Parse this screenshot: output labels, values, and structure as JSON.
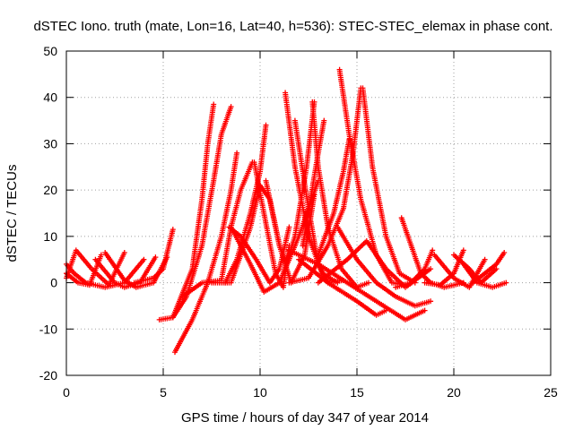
{
  "chart_data": {
    "type": "scatter",
    "title": "dSTEC Iono. truth (mate, Lon=16, Lat=40, h=536): STEC-STEC_elemax in phase cont.",
    "xlabel": "GPS time / hours of day 347 of year 2014",
    "ylabel": "dSTEC  / TECUs",
    "xlim": [
      0,
      25
    ],
    "ylim": [
      -20,
      50
    ],
    "x_ticks": [
      0,
      5,
      10,
      15,
      20,
      25
    ],
    "y_ticks": [
      -20,
      -10,
      0,
      10,
      20,
      30,
      40,
      50
    ],
    "x_tick_labels": [
      "0",
      "5",
      "10",
      "15",
      "20",
      "25"
    ],
    "y_tick_labels": [
      "-20",
      "-10",
      "0",
      "10",
      "20",
      "30",
      "40",
      "50"
    ],
    "grid": true,
    "marker": "+",
    "marker_color": "#ff0000",
    "legend": "none",
    "series": [
      {
        "x": [
          0.0,
          0.6,
          1.2,
          1.8
        ],
        "y": [
          2,
          0,
          -0.5,
          6
        ]
      },
      {
        "x": [
          0.0,
          0.5,
          1.3,
          2.2,
          3.0
        ],
        "y": [
          1,
          7,
          3,
          -0.5,
          6.5
        ]
      },
      {
        "x": [
          0.0,
          0.4,
          1.0,
          2.0,
          3.0,
          4.0
        ],
        "y": [
          4,
          2,
          0,
          -1,
          0,
          5
        ]
      },
      {
        "x": [
          1.5,
          2.5,
          3.0,
          3.8,
          4.6
        ],
        "y": [
          5,
          0,
          -1,
          0,
          5.5
        ]
      },
      {
        "x": [
          2.0,
          3.0,
          3.6,
          4.5,
          5.2
        ],
        "y": [
          6.5,
          0.5,
          -1,
          0,
          5.5
        ]
      },
      {
        "x": [
          3.5,
          4.5,
          5.0,
          5.5
        ],
        "y": [
          0,
          1,
          3,
          11.5
        ]
      },
      {
        "x": [
          4.8,
          5.5,
          6.5,
          7.0,
          7.3,
          7.6
        ],
        "y": [
          -8,
          -7.5,
          3,
          18,
          30,
          38.5
        ]
      },
      {
        "x": [
          5.5,
          6.2,
          7.0,
          7.6,
          8.0,
          8.5
        ],
        "y": [
          -7.5,
          -3,
          8,
          22,
          32,
          38
        ]
      },
      {
        "x": [
          5.6,
          6.5,
          7.3,
          8.0,
          8.5,
          8.8
        ],
        "y": [
          -15,
          -8,
          0,
          10,
          20,
          28
        ]
      },
      {
        "x": [
          6.0,
          7.0,
          8.0,
          8.5,
          9.0,
          9.6
        ],
        "y": [
          -3,
          0,
          0.5,
          12,
          20,
          26
        ]
      },
      {
        "x": [
          8.2,
          8.8,
          9.5,
          10.0,
          10.3
        ],
        "y": [
          0,
          5,
          15,
          24,
          34
        ]
      },
      {
        "x": [
          8.4,
          9.0,
          9.8,
          10.5,
          11.0,
          11.5
        ],
        "y": [
          12,
          10,
          5,
          0,
          3,
          12
        ]
      },
      {
        "x": [
          7.5,
          8.5,
          9.5,
          10.0,
          10.5,
          11.0
        ],
        "y": [
          0,
          0,
          12,
          21,
          18,
          8
        ]
      },
      {
        "x": [
          8.5,
          9.5,
          10.2,
          11.0,
          12.0,
          13.0
        ],
        "y": [
          12,
          4,
          -2,
          0,
          10,
          22
        ]
      },
      {
        "x": [
          9.7,
          10.2,
          10.8,
          11.2,
          11.5
        ],
        "y": [
          26,
          15,
          2,
          -1,
          8
        ]
      },
      {
        "x": [
          10.3,
          11.0,
          11.6,
          12.3,
          12.8
        ],
        "y": [
          22,
          8,
          0,
          6,
          19
        ]
      },
      {
        "x": [
          11.3,
          11.8,
          12.5,
          13.2,
          14.0
        ],
        "y": [
          41,
          25,
          10,
          2,
          0
        ]
      },
      {
        "x": [
          11.8,
          12.5,
          13.0,
          13.5,
          14.3
        ],
        "y": [
          35,
          16,
          4,
          0,
          0.5
        ]
      },
      {
        "x": [
          11.2,
          11.8,
          12.4,
          12.8
        ],
        "y": [
          2,
          10,
          25,
          39
        ]
      },
      {
        "x": [
          12.7,
          13.0,
          13.5,
          14.2,
          15.0,
          15.6
        ],
        "y": [
          39,
          25,
          12,
          3,
          -1,
          0
        ]
      },
      {
        "x": [
          12.2,
          12.6,
          13.0,
          13.3
        ],
        "y": [
          8,
          18,
          28,
          35
        ]
      },
      {
        "x": [
          11.5,
          12.5,
          13.5,
          14.3,
          14.8,
          15.2
        ],
        "y": [
          0,
          1,
          8,
          16,
          28,
          42
        ]
      },
      {
        "x": [
          14.1,
          14.6,
          15.2,
          16.0,
          16.8,
          17.5
        ],
        "y": [
          46,
          32,
          18,
          6,
          0,
          -0.5
        ]
      },
      {
        "x": [
          15.3,
          15.8,
          16.5,
          17.2,
          18.0
        ],
        "y": [
          42,
          25,
          10,
          2,
          0
        ]
      },
      {
        "x": [
          13.0,
          13.8,
          14.3,
          14.6
        ],
        "y": [
          6,
          15,
          24,
          31
        ]
      },
      {
        "x": [
          11.5,
          13.0,
          14.5,
          16.0,
          17.5,
          18.5
        ],
        "y": [
          7,
          4,
          0,
          -4,
          -8,
          -6
        ]
      },
      {
        "x": [
          12.0,
          13.5,
          15.0,
          16.0,
          16.5
        ],
        "y": [
          5,
          0,
          -4,
          -7,
          -6
        ]
      },
      {
        "x": [
          13.0,
          14.5,
          15.5,
          16.5,
          17.5,
          18.8
        ],
        "y": [
          0,
          5,
          9,
          3,
          -1,
          3
        ]
      },
      {
        "x": [
          14.0,
          15.0,
          16.0,
          17.0,
          18.0,
          18.8
        ],
        "y": [
          12,
          5,
          0,
          -3,
          -5,
          -4
        ]
      },
      {
        "x": [
          17.3,
          17.8,
          18.3,
          18.8,
          19.5,
          20.5
        ],
        "y": [
          14,
          8,
          2,
          0,
          -1,
          0
        ]
      },
      {
        "x": [
          17.0,
          17.8,
          18.5,
          18.9
        ],
        "y": [
          -1,
          0,
          3,
          7
        ]
      },
      {
        "x": [
          18.5,
          19.3,
          20.0,
          20.5
        ],
        "y": [
          0,
          -0.5,
          2,
          7
        ]
      },
      {
        "x": [
          19.0,
          20.0,
          20.8,
          21.6
        ],
        "y": [
          6,
          1,
          -1,
          5
        ]
      },
      {
        "x": [
          20.0,
          20.8,
          21.4,
          22.2
        ],
        "y": [
          6,
          3,
          0,
          3
        ]
      },
      {
        "x": [
          20.5,
          21.2,
          22.0,
          22.7
        ],
        "y": [
          4,
          0,
          -1,
          0
        ]
      },
      {
        "x": [
          21.0,
          21.6,
          22.2,
          22.6
        ],
        "y": [
          0,
          2,
          4,
          6.5
        ]
      }
    ]
  }
}
